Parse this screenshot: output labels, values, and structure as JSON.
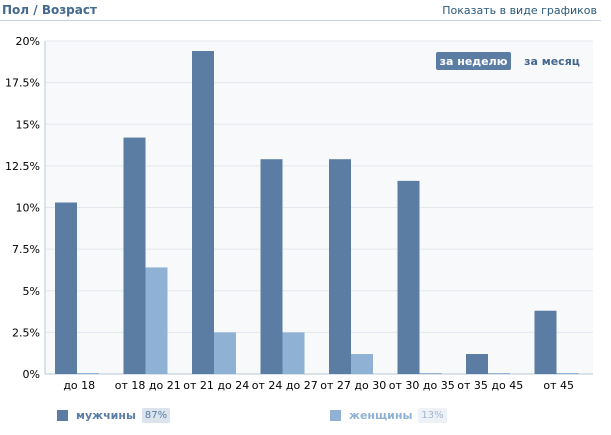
{
  "header": {
    "title": "Пол / Возраст",
    "show_charts_link": "Показать в виде графиков"
  },
  "period_toggle": {
    "week_label": "за неделю",
    "month_label": "за месяц",
    "active": "week"
  },
  "legend": {
    "men_label": "мужчины",
    "men_percent": "87%",
    "women_label": "женщины",
    "women_percent": "13%"
  },
  "colors": {
    "men": "#5b7ca3",
    "women": "#8fb2d4",
    "axis_text": "#000000",
    "grid": "#e3e8ee",
    "plot_bg": "#f7f9fb"
  },
  "chart_data": {
    "type": "bar",
    "categories": [
      "до 18",
      "от 18 до 21",
      "от 21 до 24",
      "от 24 до 27",
      "от 27 до 30",
      "от 30 до 35",
      "от 35 до 45",
      "от 45"
    ],
    "series": [
      {
        "name": "мужчины",
        "values": [
          10.3,
          14.2,
          19.4,
          12.9,
          12.9,
          11.6,
          1.2,
          3.8
        ]
      },
      {
        "name": "женщины",
        "values": [
          0.05,
          6.4,
          2.5,
          2.5,
          1.2,
          0.05,
          0.05,
          0.05
        ]
      }
    ],
    "y_ticks": [
      "0%",
      "2.5%",
      "5%",
      "7.5%",
      "10%",
      "12.5%",
      "15%",
      "17.5%",
      "20%"
    ],
    "ylim": [
      0,
      20
    ],
    "grid": true,
    "title": "",
    "xlabel": "",
    "ylabel": ""
  }
}
